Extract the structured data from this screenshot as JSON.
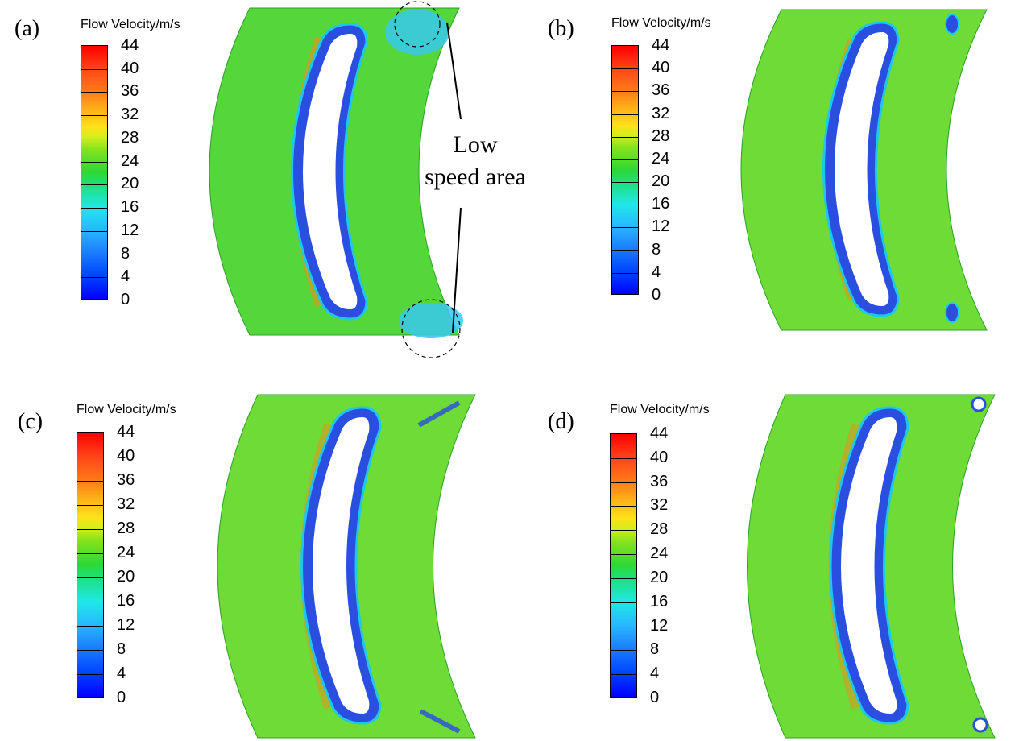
{
  "panels": [
    {
      "id": "a",
      "label": "(a)",
      "legend_title": "Flow Velocity/m/s"
    },
    {
      "id": "b",
      "label": "(b)",
      "legend_title": "Flow Velocity/m/s"
    },
    {
      "id": "c",
      "label": "(c)",
      "legend_title": "Flow Velocity/m/s"
    },
    {
      "id": "d",
      "label": "(d)",
      "legend_title": "Flow Velocity/m/s"
    }
  ],
  "colorbar": {
    "ticks": [
      "44",
      "40",
      "36",
      "32",
      "28",
      "24",
      "20",
      "16",
      "12",
      "8",
      "4",
      "0"
    ],
    "min": 0,
    "max": 44,
    "colors": {
      "low": "#0000ff",
      "mid": "#2cd836",
      "high": "#ff0000"
    }
  },
  "annotation": {
    "line1": "Low",
    "line2": "speed area"
  },
  "field_colors": {
    "background": "#55d63a",
    "wall_layer": "#2a4fe0",
    "edge_layer": "#1fc8e8",
    "high_band": "#e07a20"
  }
}
